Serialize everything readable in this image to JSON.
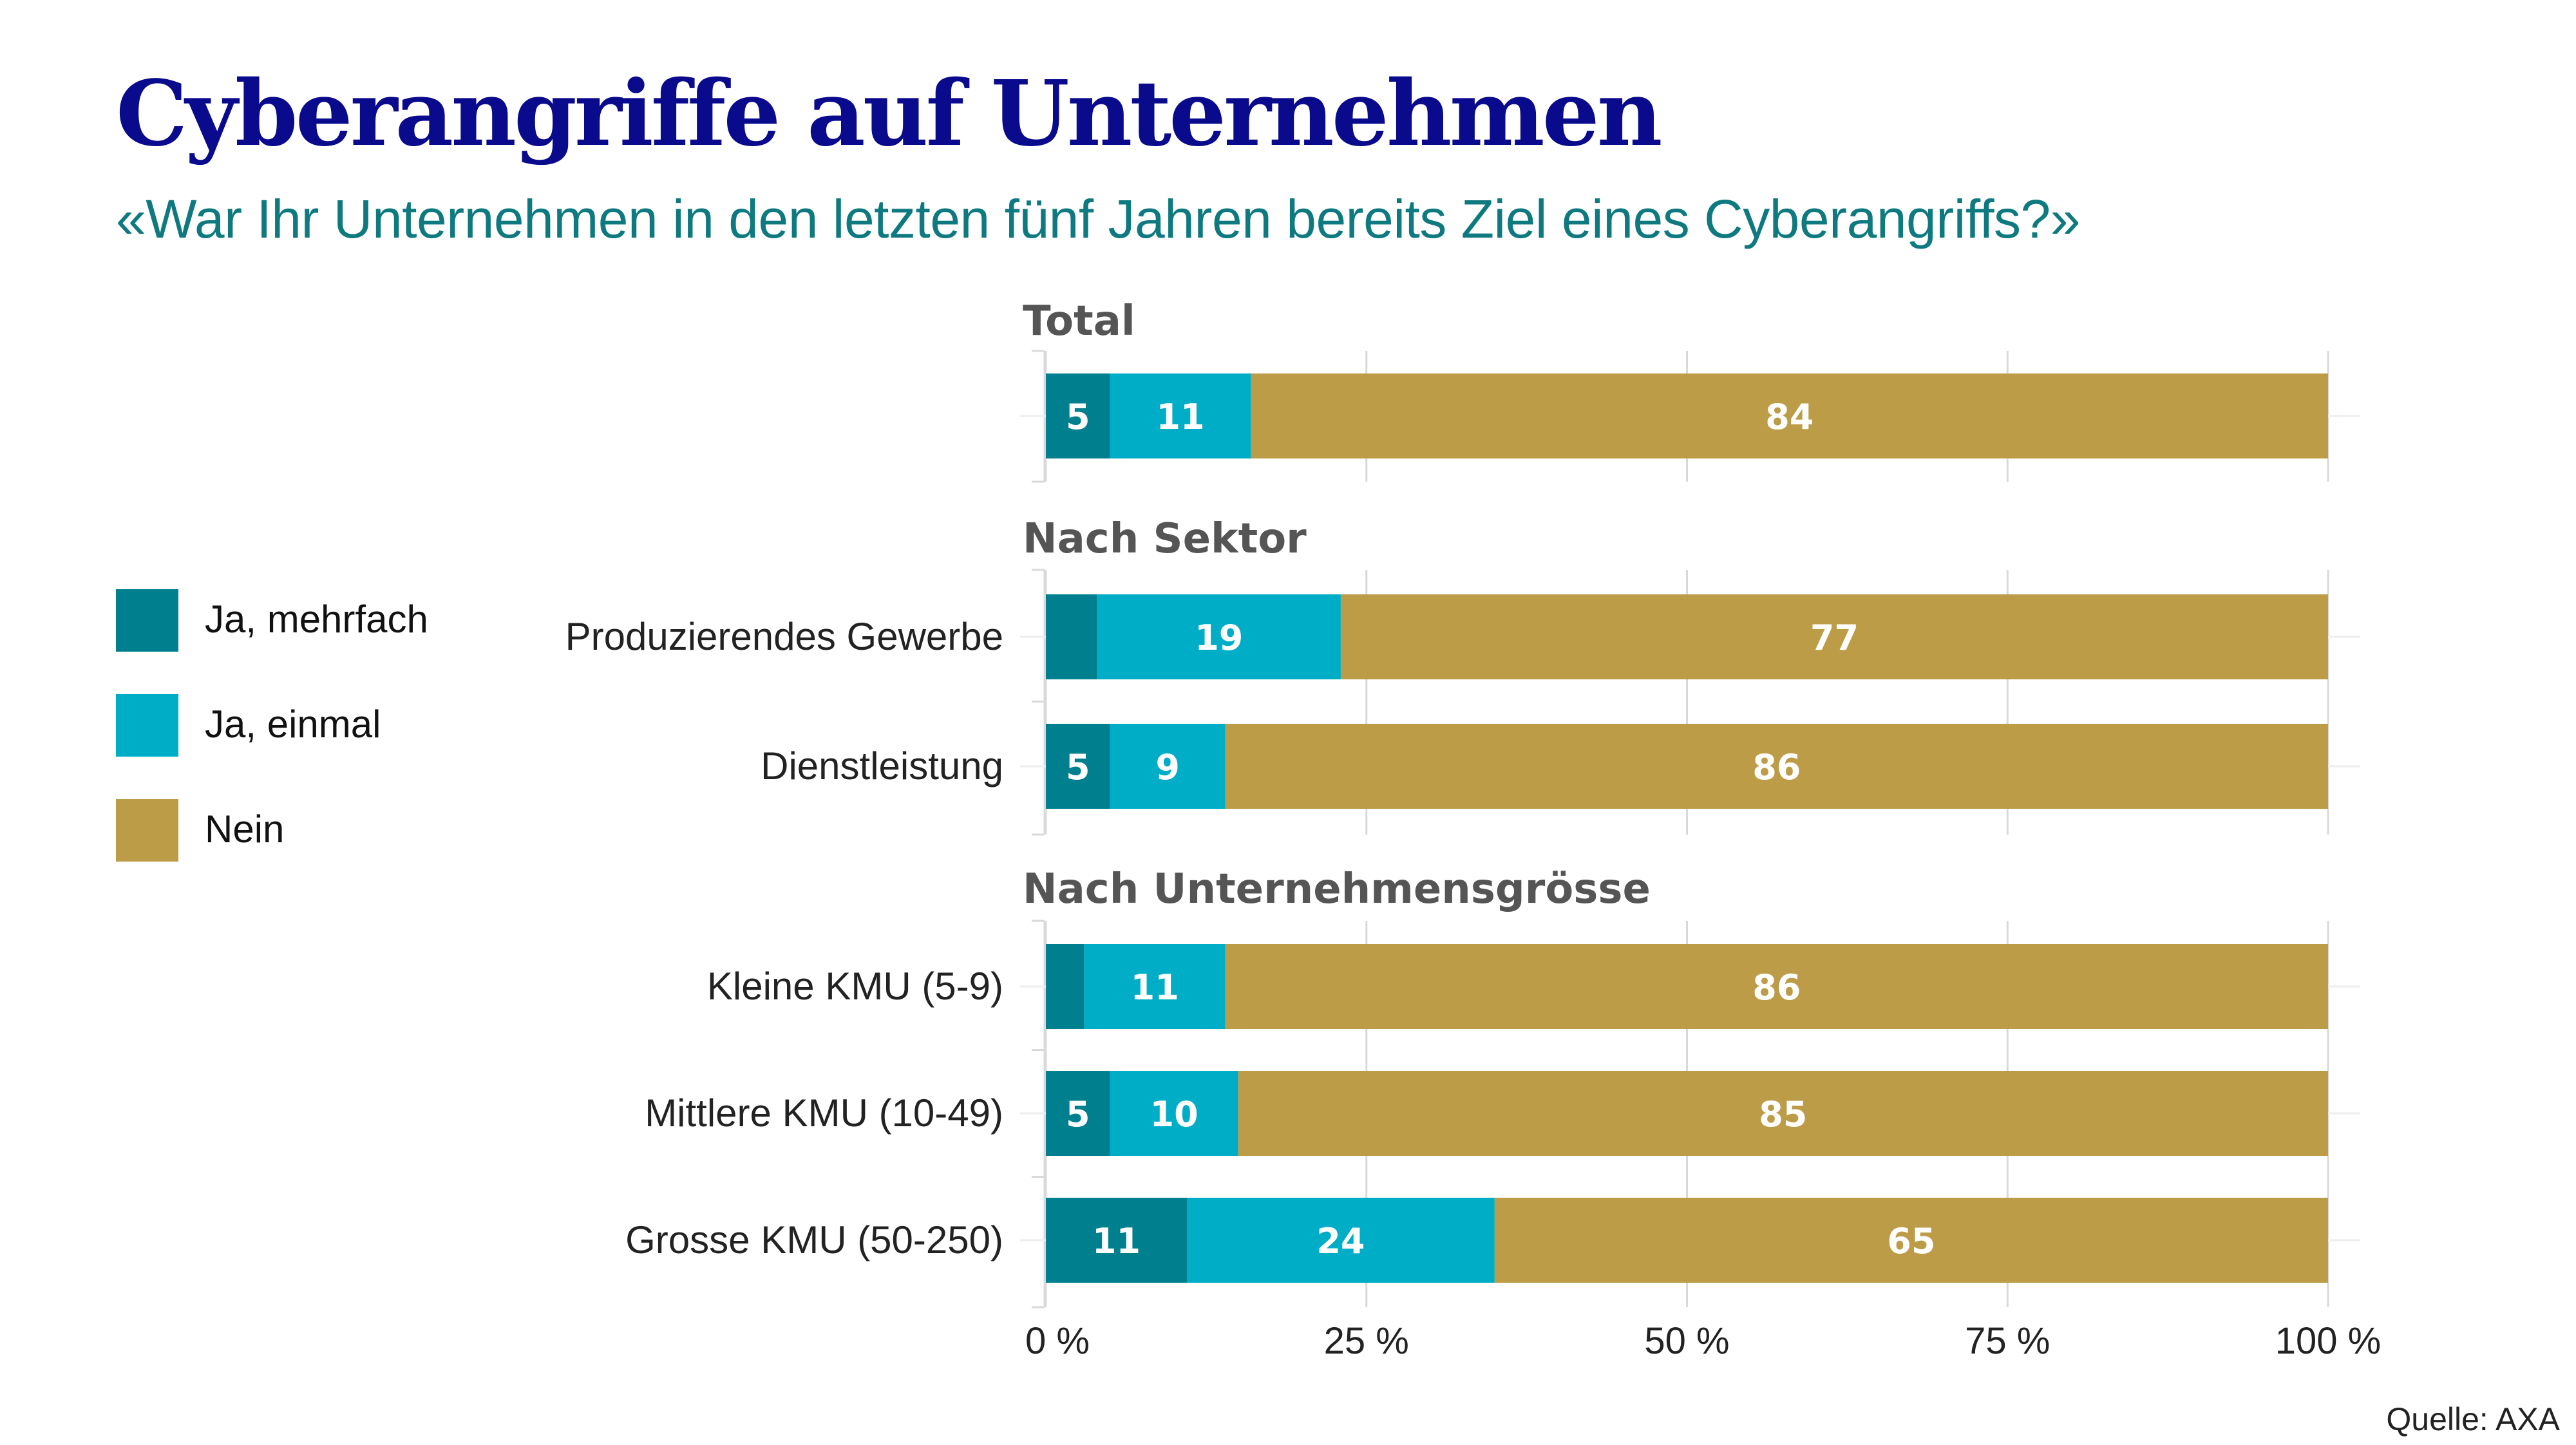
{
  "header": {
    "title": "Cyberangriffe auf Unternehmen",
    "subtitle": "«War Ihr Unternehmen in den letzten fünf Jahren bereits Ziel eines Cyberangriffs?»"
  },
  "source": "Quelle: AXA",
  "colors": {
    "ja_mehrfach": "#00808f",
    "ja_einmal": "#00adc6",
    "nein": "#bd9c48",
    "gridline": "#d9d9d9",
    "group_title": "#555555"
  },
  "chart_data": {
    "type": "bar",
    "orientation": "horizontal",
    "stacked": true,
    "title": "Cyberangriffe auf Unternehmen",
    "subtitle": "«War Ihr Unternehmen in den letzten fünf Jahren bereits Ziel eines Cyberangriffs?»",
    "xlabel": "",
    "ylabel": "",
    "xlim": [
      0,
      100
    ],
    "x_ticks": [
      0,
      25,
      50,
      75,
      100
    ],
    "x_tick_labels": [
      "0 %",
      "25 %",
      "50 %",
      "75 %",
      "100 %"
    ],
    "grid": true,
    "legend_position": "left",
    "legend": [
      "Ja, mehrfach",
      "Ja, einmal",
      "Nein"
    ],
    "groups": [
      {
        "title": "Total",
        "categories": [
          ""
        ],
        "series": [
          {
            "name": "Ja, mehrfach",
            "values": [
              5
            ],
            "labels": [
              "5"
            ]
          },
          {
            "name": "Ja, einmal",
            "values": [
              11
            ],
            "labels": [
              "11"
            ]
          },
          {
            "name": "Nein",
            "values": [
              84
            ],
            "labels": [
              "84"
            ]
          }
        ]
      },
      {
        "title": "Nach Sektor",
        "categories": [
          "Produzierendes Gewerbe",
          "Dienstleistung"
        ],
        "series": [
          {
            "name": "Ja, mehrfach",
            "values": [
              4,
              5
            ],
            "labels": [
              "",
              "5"
            ]
          },
          {
            "name": "Ja, einmal",
            "values": [
              19,
              9
            ],
            "labels": [
              "19",
              "9"
            ]
          },
          {
            "name": "Nein",
            "values": [
              77,
              86
            ],
            "labels": [
              "77",
              "86"
            ]
          }
        ]
      },
      {
        "title": "Nach Unternehmensgrösse",
        "categories": [
          "Kleine KMU (5-9)",
          "Mittlere KMU (10-49)",
          "Grosse KMU (50-250)"
        ],
        "series": [
          {
            "name": "Ja, mehrfach",
            "values": [
              3,
              5,
              11
            ],
            "labels": [
              "",
              "5",
              "11"
            ]
          },
          {
            "name": "Ja, einmal",
            "values": [
              11,
              10,
              24
            ],
            "labels": [
              "11",
              "10",
              "24"
            ]
          },
          {
            "name": "Nein",
            "values": [
              86,
              85,
              65
            ],
            "labels": [
              "86",
              "85",
              "65"
            ]
          }
        ]
      }
    ]
  }
}
